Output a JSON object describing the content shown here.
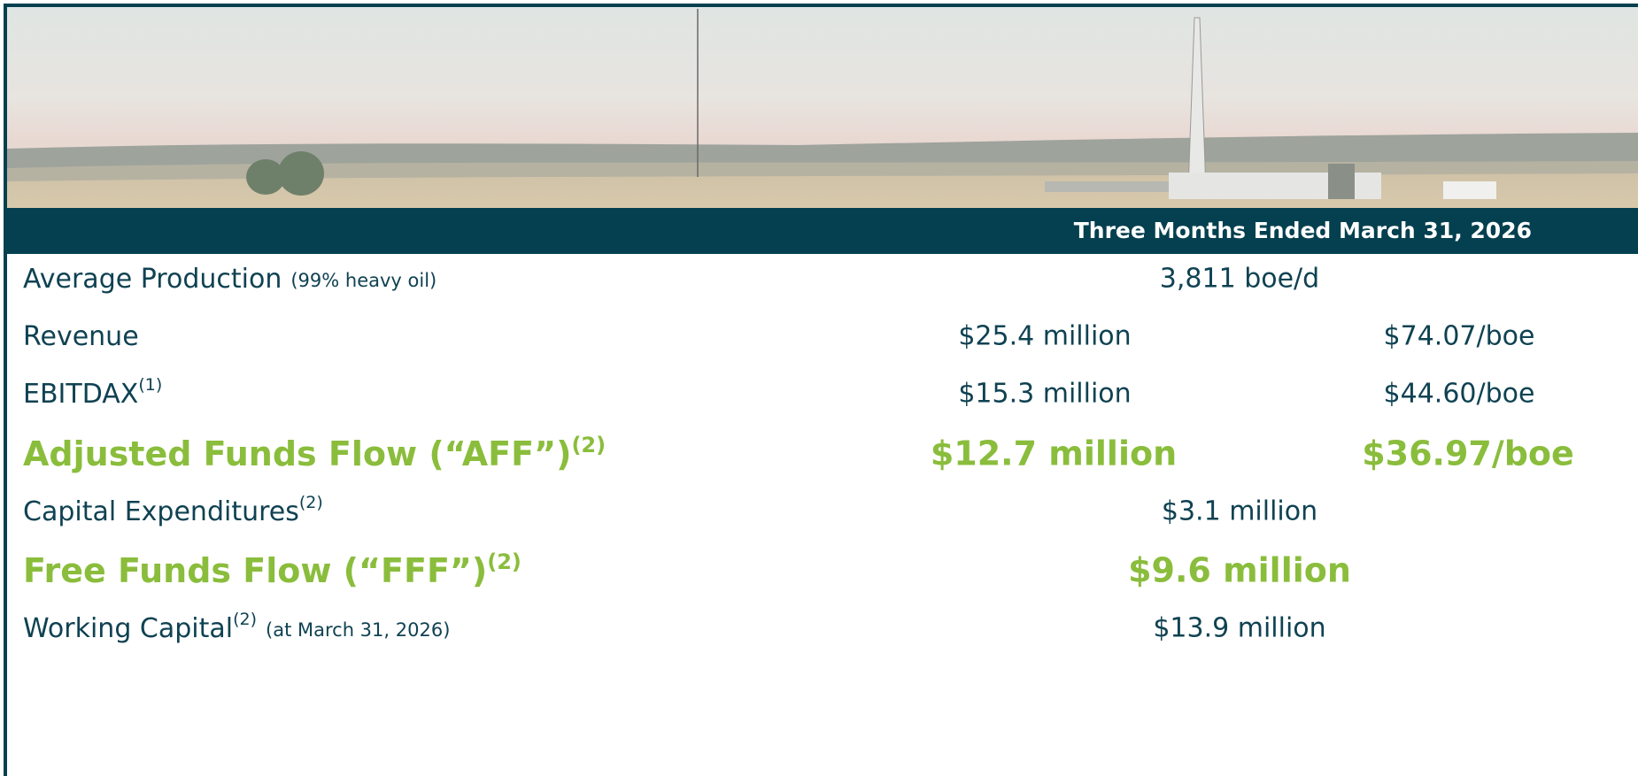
{
  "header": {
    "period": "Three Months Ended March 31, 2026"
  },
  "rows": [
    {
      "label": "Average Production",
      "note": "(99% heavy oil)",
      "values": [
        "3,811 boe/d"
      ]
    },
    {
      "label": "Revenue",
      "values": [
        "$25.4 million",
        "$74.07/boe"
      ]
    },
    {
      "label": "EBITDAX",
      "sup": "(1)",
      "values": [
        "$15.3 million",
        "$44.60/boe"
      ]
    },
    {
      "label": "Adjusted Funds Flow (“AFF”)",
      "sup": "(2)",
      "values": [
        "$12.7 million",
        "$36.97/boe"
      ],
      "emphasis": true
    },
    {
      "label": "Capital Expenditures",
      "sup": "(2)",
      "values": [
        "$3.1 million"
      ]
    },
    {
      "label": "Free Funds Flow (“FFF”)",
      "sup": "(2)",
      "values": [
        "$9.6 million"
      ],
      "emphasis": true
    },
    {
      "label": "Working Capital",
      "sup": "(2)",
      "note": "(at March 31, 2026)",
      "values": [
        "$13.9 million"
      ]
    }
  ]
}
